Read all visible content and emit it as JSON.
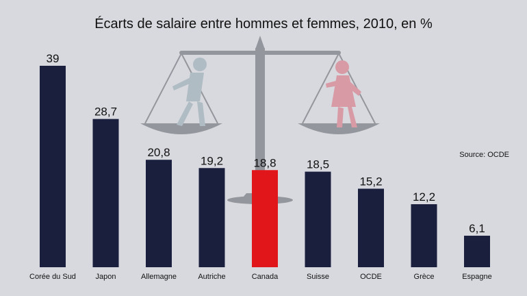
{
  "chart_data": {
    "type": "bar",
    "title": "Écarts de salaire entre hommes et femmes, 2010, en %",
    "source": "Source: OCDE",
    "categories": [
      "Corée du Sud",
      "Japon",
      "Allemagne",
      "Autriche",
      "Canada",
      "Suisse",
      "OCDE",
      "Grèce",
      "Espagne"
    ],
    "values": [
      39,
      28.7,
      20.8,
      19.2,
      18.8,
      18.5,
      15.2,
      12.2,
      6.1
    ],
    "value_labels": [
      "39",
      "28,7",
      "20,8",
      "19,2",
      "18,8",
      "18,5",
      "15,2",
      "12,2",
      "6,1"
    ],
    "highlight_category": "Canada",
    "colors": {
      "bar": "#1a1f3d",
      "highlight": "#e0161b",
      "background": "#d8d9de",
      "text": "#111111"
    },
    "ylim": [
      0,
      40
    ],
    "xlabel": "",
    "ylabel": "",
    "grid": false,
    "legend": "none",
    "background_illustration": "balance-scale-icon"
  }
}
